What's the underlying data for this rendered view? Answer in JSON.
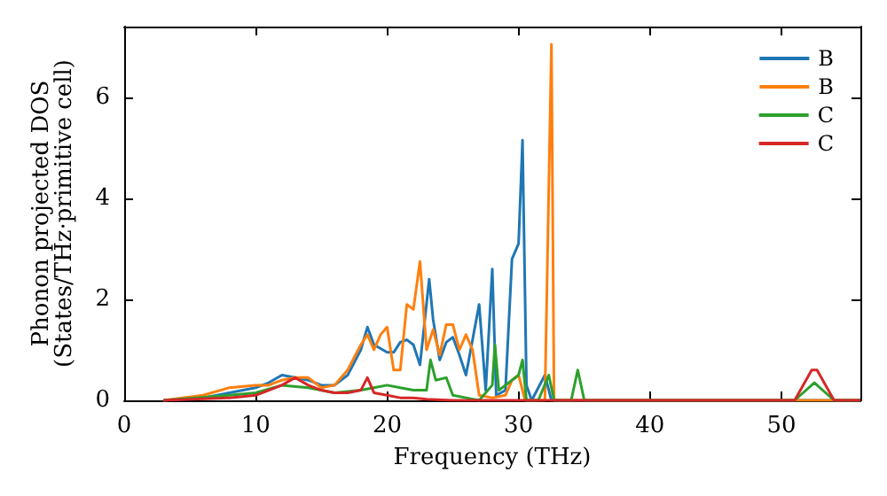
{
  "chart_data": {
    "type": "line",
    "xlabel": "Frequency (THz)",
    "ylabel": "Phonon projected DOS\n(States/THz·primitive cell)",
    "xlim": [
      0,
      56
    ],
    "xticks": [
      0,
      10,
      20,
      30,
      40,
      50
    ],
    "ylim": [
      0,
      7.4
    ],
    "yticks": [
      0,
      2,
      4,
      6
    ],
    "grid": false,
    "legend": "top right",
    "marker": "none",
    "line_style": "solid",
    "series": [
      {
        "name": "B",
        "color": "#1f77b4",
        "x": [
          3,
          6,
          8,
          10,
          11,
          12,
          13,
          14,
          15,
          16,
          17,
          18,
          18.5,
          19,
          20,
          20.5,
          21,
          21.5,
          22,
          22.5,
          23.2,
          23.5,
          24,
          24.5,
          25,
          25.5,
          26,
          27,
          27.5,
          28,
          28.3,
          29,
          29.5,
          30,
          30.3,
          30.6,
          31,
          32,
          32.5,
          56
        ],
        "values": [
          0,
          0.05,
          0.15,
          0.25,
          0.35,
          0.5,
          0.45,
          0.4,
          0.3,
          0.3,
          0.5,
          1.0,
          1.45,
          1.1,
          0.95,
          0.95,
          1.15,
          1.2,
          1.1,
          0.7,
          2.4,
          1.6,
          0.8,
          1.15,
          1.25,
          0.9,
          0.5,
          1.9,
          0.2,
          2.6,
          0.1,
          0.2,
          2.8,
          3.1,
          5.15,
          0.3,
          0,
          0.5,
          0,
          0
        ]
      },
      {
        "name": "B",
        "color": "#ff7f0e",
        "x": [
          3,
          6,
          8,
          10,
          11,
          12,
          13,
          14,
          15,
          16,
          17,
          18,
          18.5,
          19,
          19.5,
          20,
          20.5,
          21,
          21.5,
          22,
          22.5,
          23,
          23.5,
          24,
          24.5,
          25,
          25.5,
          26,
          26.5,
          27,
          28,
          29,
          29.5,
          30,
          30.5,
          32,
          32.5,
          32.7,
          56
        ],
        "values": [
          0,
          0.1,
          0.25,
          0.3,
          0.3,
          0.4,
          0.45,
          0.45,
          0.25,
          0.3,
          0.6,
          1.1,
          1.3,
          1.0,
          1.3,
          1.45,
          0.6,
          0.6,
          1.9,
          1.8,
          2.75,
          1.0,
          1.4,
          0.9,
          1.5,
          1.5,
          1.0,
          1.3,
          1.0,
          0.1,
          0.05,
          0.1,
          0.4,
          0.5,
          0,
          0,
          7.05,
          0,
          0
        ]
      },
      {
        "name": "C",
        "color": "#2ca02c",
        "x": [
          3,
          8,
          10,
          12,
          14,
          16,
          18,
          19,
          20,
          21,
          22,
          23,
          23.3,
          23.7,
          24.5,
          25,
          26,
          27,
          28,
          28.2,
          28.5,
          29.5,
          30,
          30.3,
          30.6,
          31.5,
          32.3,
          32.7,
          34,
          34.5,
          35,
          51,
          52.5,
          54,
          56
        ],
        "values": [
          0,
          0.1,
          0.15,
          0.3,
          0.25,
          0.15,
          0.2,
          0.25,
          0.3,
          0.25,
          0.2,
          0.2,
          0.8,
          0.4,
          0.45,
          0.1,
          0.05,
          0,
          0.3,
          1.1,
          0.2,
          0.4,
          0.5,
          0.8,
          0,
          0,
          0.5,
          0,
          0,
          0.6,
          0,
          0,
          0.35,
          0,
          0
        ]
      },
      {
        "name": "C",
        "color": "#d62728",
        "x": [
          3,
          8,
          10,
          12,
          13,
          14,
          15,
          16,
          17,
          18,
          18.5,
          19,
          20,
          21,
          22,
          23,
          25,
          51,
          52.3,
          52.7,
          54,
          56
        ],
        "values": [
          0,
          0.05,
          0.1,
          0.3,
          0.45,
          0.3,
          0.2,
          0.15,
          0.15,
          0.2,
          0.45,
          0.15,
          0.1,
          0.05,
          0.05,
          0.02,
          0,
          0,
          0.6,
          0.6,
          0,
          0
        ]
      }
    ]
  }
}
